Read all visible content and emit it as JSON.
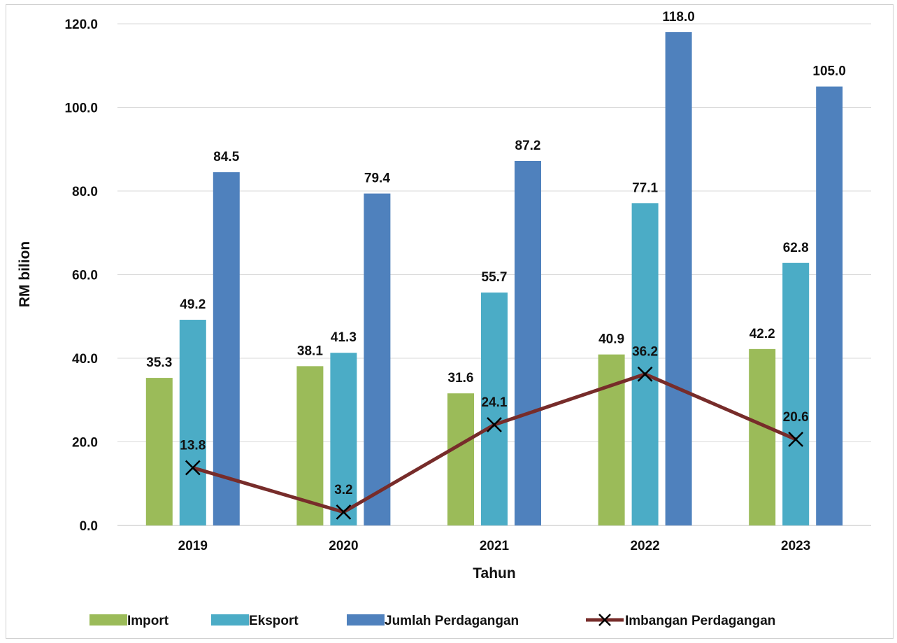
{
  "chart_data": {
    "type": "bar",
    "categories": [
      "2019",
      "2020",
      "2021",
      "2022",
      "2023"
    ],
    "xlabel": "Tahun",
    "ylabel": "RM bilion",
    "ylim": [
      0,
      120
    ],
    "yticks": [
      "0.0",
      "20.0",
      "40.0",
      "60.0",
      "80.0",
      "100.0",
      "120.0"
    ],
    "grid": true,
    "legend_position": "bottom",
    "series": [
      {
        "name": "Import",
        "kind": "bar",
        "color": "#9bbb59",
        "values": [
          35.3,
          38.1,
          31.6,
          40.9,
          42.2
        ],
        "labels": [
          "35.3",
          "38.1",
          "31.6",
          "40.9",
          "42.2"
        ]
      },
      {
        "name": "Eksport",
        "kind": "bar",
        "color": "#4bacc6",
        "values": [
          49.2,
          41.3,
          55.7,
          77.1,
          62.8
        ],
        "labels": [
          "49.2",
          "41.3",
          "55.7",
          "77.1",
          "62.8"
        ]
      },
      {
        "name": "Jumlah Perdagangan",
        "kind": "bar",
        "color": "#4f81bd",
        "values": [
          84.5,
          79.4,
          87.2,
          118.0,
          105.0
        ],
        "labels": [
          "84.5",
          "79.4",
          "87.2",
          "118.0",
          "105.0"
        ]
      },
      {
        "name": "Imbangan Perdagangan",
        "kind": "line",
        "color": "#772c2a",
        "marker_color": "#000000",
        "values": [
          13.8,
          3.2,
          24.1,
          36.2,
          20.6
        ],
        "labels": [
          "13.8",
          "3.2",
          "24.1",
          "36.2",
          "20.6"
        ]
      }
    ]
  }
}
